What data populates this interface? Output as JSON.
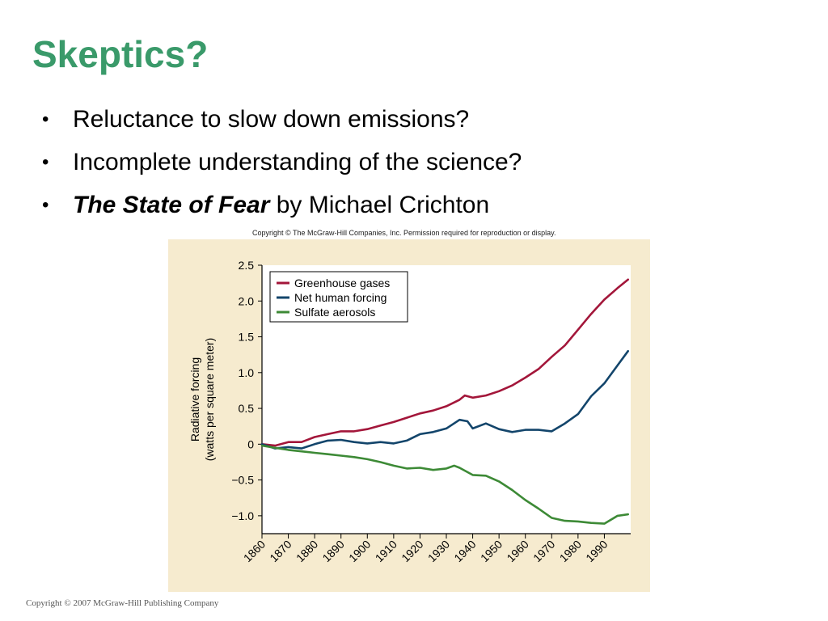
{
  "slide": {
    "title": "Skeptics?",
    "bullets": [
      {
        "marker": "•",
        "emphasis": "",
        "text": "Reluctance to slow down emissions?"
      },
      {
        "marker": "•",
        "emphasis": "",
        "text": "Incomplete understanding of the science?"
      },
      {
        "marker": "•",
        "emphasis": "The State of Fear",
        "text": " by Michael Crichton"
      }
    ],
    "figure_copyright": "Copyright © The McGraw-Hill Companies, Inc. Permission required for reproduction or display.",
    "footer": "Copyright © 2007 McGraw-Hill Publishing Company"
  },
  "chart_data": {
    "type": "line",
    "title": "",
    "xlabel": "",
    "ylabel_lines": [
      "Radiative forcing",
      "(watts per square meter)"
    ],
    "xlim": [
      1860,
      2000
    ],
    "ylim": [
      -1.25,
      2.5
    ],
    "x_ticks": [
      1860,
      1870,
      1880,
      1890,
      1900,
      1910,
      1920,
      1930,
      1940,
      1950,
      1960,
      1970,
      1980,
      1990
    ],
    "y_ticks": [
      {
        "value": 2.5,
        "label": "2.5"
      },
      {
        "value": 2.0,
        "label": "2.0"
      },
      {
        "value": 1.5,
        "label": "1.5"
      },
      {
        "value": 1.0,
        "label": "1.0"
      },
      {
        "value": 0.5,
        "label": "0.5"
      },
      {
        "value": 0,
        "label": "0"
      },
      {
        "value": -0.5,
        "label": "−0.5"
      },
      {
        "value": -1.0,
        "label": "−1.0"
      }
    ],
    "legend_position": "top-left",
    "grid": false,
    "series": [
      {
        "name": "Greenhouse gases",
        "color": "#a3163a",
        "x": [
          1860,
          1865,
          1870,
          1875,
          1880,
          1885,
          1890,
          1895,
          1900,
          1905,
          1910,
          1915,
          1920,
          1925,
          1930,
          1935,
          1937,
          1940,
          1945,
          1950,
          1955,
          1960,
          1965,
          1970,
          1975,
          1980,
          1985,
          1990,
          1995,
          1999
        ],
        "y": [
          0.0,
          -0.02,
          0.03,
          0.03,
          0.1,
          0.14,
          0.18,
          0.18,
          0.21,
          0.26,
          0.31,
          0.37,
          0.43,
          0.47,
          0.53,
          0.62,
          0.68,
          0.65,
          0.68,
          0.74,
          0.82,
          0.93,
          1.05,
          1.22,
          1.38,
          1.6,
          1.82,
          2.02,
          2.18,
          2.3
        ]
      },
      {
        "name": "Net human forcing",
        "color": "#13456b",
        "x": [
          1860,
          1865,
          1870,
          1875,
          1880,
          1885,
          1890,
          1895,
          1900,
          1905,
          1910,
          1915,
          1920,
          1925,
          1930,
          1935,
          1938,
          1940,
          1945,
          1950,
          1955,
          1960,
          1965,
          1970,
          1975,
          1980,
          1985,
          1990,
          1995,
          1999
        ],
        "y": [
          0.0,
          -0.06,
          -0.04,
          -0.06,
          0.0,
          0.05,
          0.06,
          0.03,
          0.01,
          0.03,
          0.01,
          0.05,
          0.14,
          0.17,
          0.22,
          0.34,
          0.32,
          0.22,
          0.29,
          0.21,
          0.17,
          0.2,
          0.2,
          0.18,
          0.29,
          0.42,
          0.67,
          0.85,
          1.1,
          1.3
        ]
      },
      {
        "name": "Sulfate aerosols",
        "color": "#3d8a36",
        "x": [
          1860,
          1865,
          1870,
          1875,
          1880,
          1885,
          1890,
          1895,
          1900,
          1905,
          1910,
          1915,
          1920,
          1925,
          1930,
          1933,
          1935,
          1940,
          1945,
          1950,
          1955,
          1960,
          1965,
          1970,
          1975,
          1980,
          1985,
          1990,
          1995,
          1999
        ],
        "y": [
          -0.02,
          -0.05,
          -0.08,
          -0.1,
          -0.12,
          -0.14,
          -0.16,
          -0.18,
          -0.21,
          -0.25,
          -0.3,
          -0.34,
          -0.33,
          -0.36,
          -0.34,
          -0.3,
          -0.33,
          -0.43,
          -0.44,
          -0.52,
          -0.64,
          -0.78,
          -0.9,
          -1.03,
          -1.07,
          -1.08,
          -1.1,
          -1.11,
          -1.0,
          -0.98
        ]
      }
    ]
  }
}
